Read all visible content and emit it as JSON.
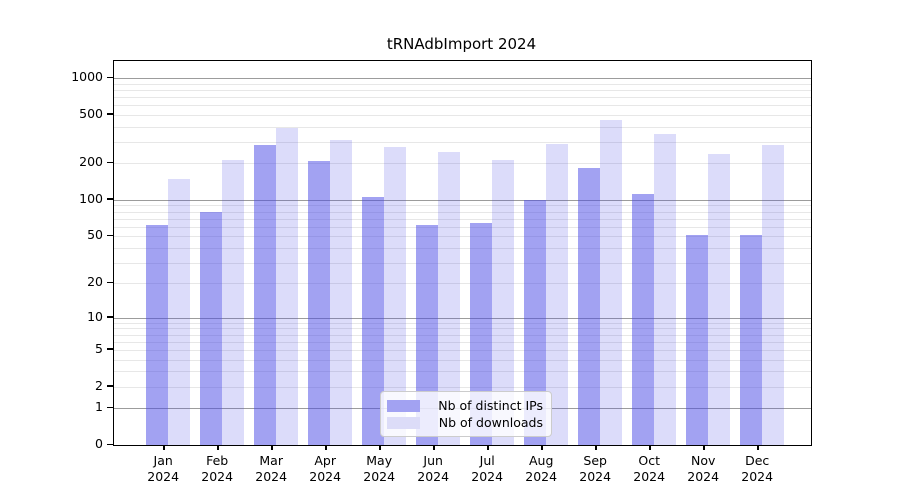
{
  "title": "tRNAdbImport 2024",
  "chart_data": {
    "type": "bar",
    "title": "tRNAdbImport 2024",
    "categories": [
      "Jan",
      "Feb",
      "Mar",
      "Apr",
      "May",
      "Jun",
      "Jul",
      "Aug",
      "Sep",
      "Oct",
      "Nov",
      "Dec"
    ],
    "year": "2024",
    "series": [
      {
        "name": "Nb of distinct IPs",
        "values": [
          62,
          79,
          281,
          208,
          106,
          62,
          65,
          99,
          182,
          112,
          51,
          51
        ]
      },
      {
        "name": "Nb of downloads",
        "values": [
          148,
          213,
          394,
          309,
          274,
          250,
          215,
          290,
          452,
          351,
          240,
          281
        ]
      }
    ],
    "xlabel": "",
    "ylabel": "",
    "yscale": "log1p",
    "yticks": [
      0,
      1,
      2,
      5,
      10,
      20,
      50,
      100,
      200,
      500,
      1000
    ],
    "ylim": [
      0,
      1380
    ],
    "grid": true,
    "gridlines_major": [
      1,
      10,
      100,
      1000
    ],
    "gridlines_minor": [
      2,
      3,
      4,
      5,
      6,
      7,
      8,
      9,
      20,
      30,
      40,
      50,
      60,
      70,
      80,
      90,
      200,
      300,
      400,
      500,
      600,
      700,
      800,
      900
    ],
    "legend_position": "inside-bottom-center"
  },
  "colors": {
    "bar_distinct_ips": "rgba(70,70,230,0.50)",
    "bar_downloads": "rgba(70,70,230,0.19)",
    "legend_swatch_distinct_ips": "#a2a2f2",
    "legend_swatch_downloads": "#dcdcf8",
    "grid_major": "#9c9c9c",
    "grid_minor": "#e7e7e7",
    "axis": "#000000"
  }
}
